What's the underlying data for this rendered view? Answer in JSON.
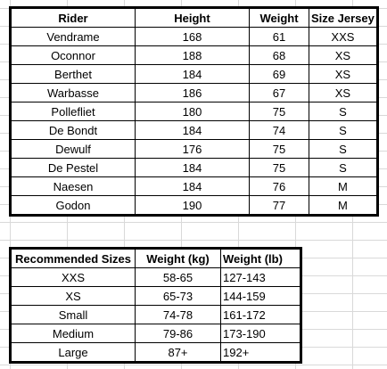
{
  "riders_table": {
    "headers": {
      "rider": "Rider",
      "height": "Height",
      "weight": "Weight",
      "size": "Size Jersey"
    },
    "rows": [
      {
        "rider": "Vendrame",
        "height": "168",
        "weight": "61",
        "size": "XXS"
      },
      {
        "rider": "Oconnor",
        "height": "188",
        "weight": "68",
        "size": "XS"
      },
      {
        "rider": "Berthet",
        "height": "184",
        "weight": "69",
        "size": "XS"
      },
      {
        "rider": "Warbasse",
        "height": "186",
        "weight": "67",
        "size": "XS"
      },
      {
        "rider": "Pollefliet",
        "height": "180",
        "weight": "75",
        "size": "S"
      },
      {
        "rider": "De Bondt",
        "height": "184",
        "weight": "74",
        "size": "S"
      },
      {
        "rider": "Dewulf",
        "height": "176",
        "weight": "75",
        "size": "S"
      },
      {
        "rider": "De Pestel",
        "height": "184",
        "weight": "75",
        "size": "S"
      },
      {
        "rider": "Naesen",
        "height": "184",
        "weight": "76",
        "size": "M"
      },
      {
        "rider": "Godon",
        "height": "190",
        "weight": "77",
        "size": "M"
      }
    ]
  },
  "sizes_table": {
    "headers": {
      "size": "Recommended Sizes",
      "kg": "Weight (kg)",
      "lb": "Weight (lb)"
    },
    "rows": [
      {
        "size": "XXS",
        "kg": "58-65",
        "lb": "127-143"
      },
      {
        "size": "XS",
        "kg": "65-73",
        "lb": "144-159"
      },
      {
        "size": "Small",
        "kg": "74-78",
        "lb": "161-172"
      },
      {
        "size": "Medium",
        "kg": "79-86",
        "lb": "173-190"
      },
      {
        "size": "Large",
        "kg": "87+",
        "lb": "192+"
      }
    ]
  }
}
